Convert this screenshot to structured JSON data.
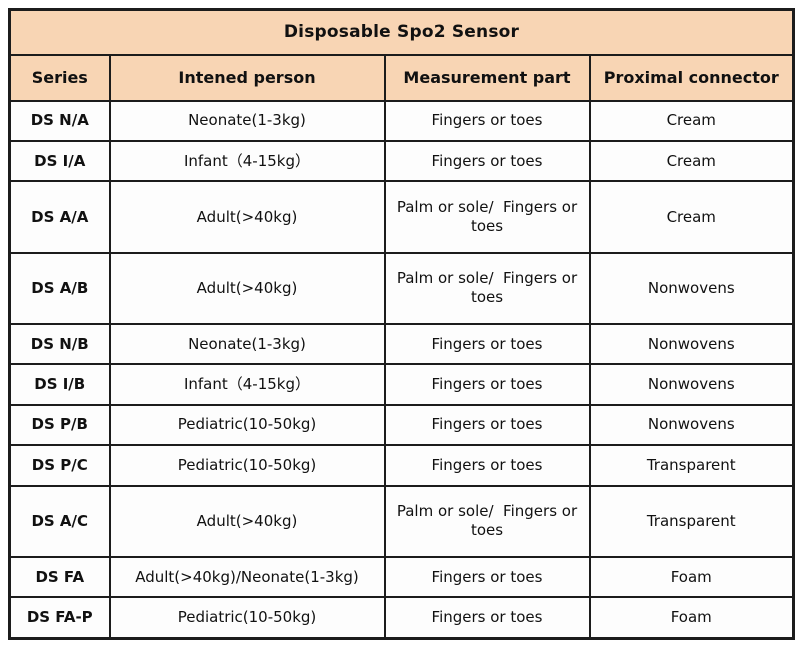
{
  "colors": {
    "header_bg": "#f8d5b4",
    "border": "#1c1c1c",
    "body_bg": "#fdfdfd",
    "text": "#111111"
  },
  "table": {
    "title": "Disposable Spo2 Sensor",
    "headers": [
      "Series",
      "Intened person",
      "Measurement part",
      "Proximal connector"
    ],
    "rows": [
      [
        "DS N/A",
        "Neonate(1-3kg)",
        "Fingers or toes",
        "Cream"
      ],
      [
        "DS I/A",
        "Infant（4-15kg）",
        "Fingers or toes",
        "Cream"
      ],
      [
        "DS A/A",
        "Adult(>40kg)",
        "Palm or sole/  Fingers or toes",
        "Cream"
      ],
      [
        "DS A/B",
        "Adult(>40kg)",
        "Palm or sole/  Fingers or toes",
        "Nonwovens"
      ],
      [
        "DS N/B",
        "Neonate(1-3kg)",
        "Fingers or toes",
        "Nonwovens"
      ],
      [
        "DS I/B",
        "Infant（4-15kg）",
        "Fingers or toes",
        "Nonwovens"
      ],
      [
        "DS P/B",
        "Pediatric(10-50kg)",
        "Fingers or toes",
        "Nonwovens"
      ],
      [
        "DS P/C",
        "Pediatric(10-50kg)",
        "Fingers or toes",
        "Transparent"
      ],
      [
        "DS A/C",
        "Adult(>40kg)",
        "Palm or sole/  Fingers or toes",
        "Transparent"
      ],
      [
        "DS FA",
        "Adult(>40kg)/Neonate(1-3kg)",
        "Fingers or toes",
        "Foam"
      ],
      [
        "DS FA-P",
        "Pediatric(10-50kg)",
        "Fingers or toes",
        "Foam"
      ]
    ]
  }
}
